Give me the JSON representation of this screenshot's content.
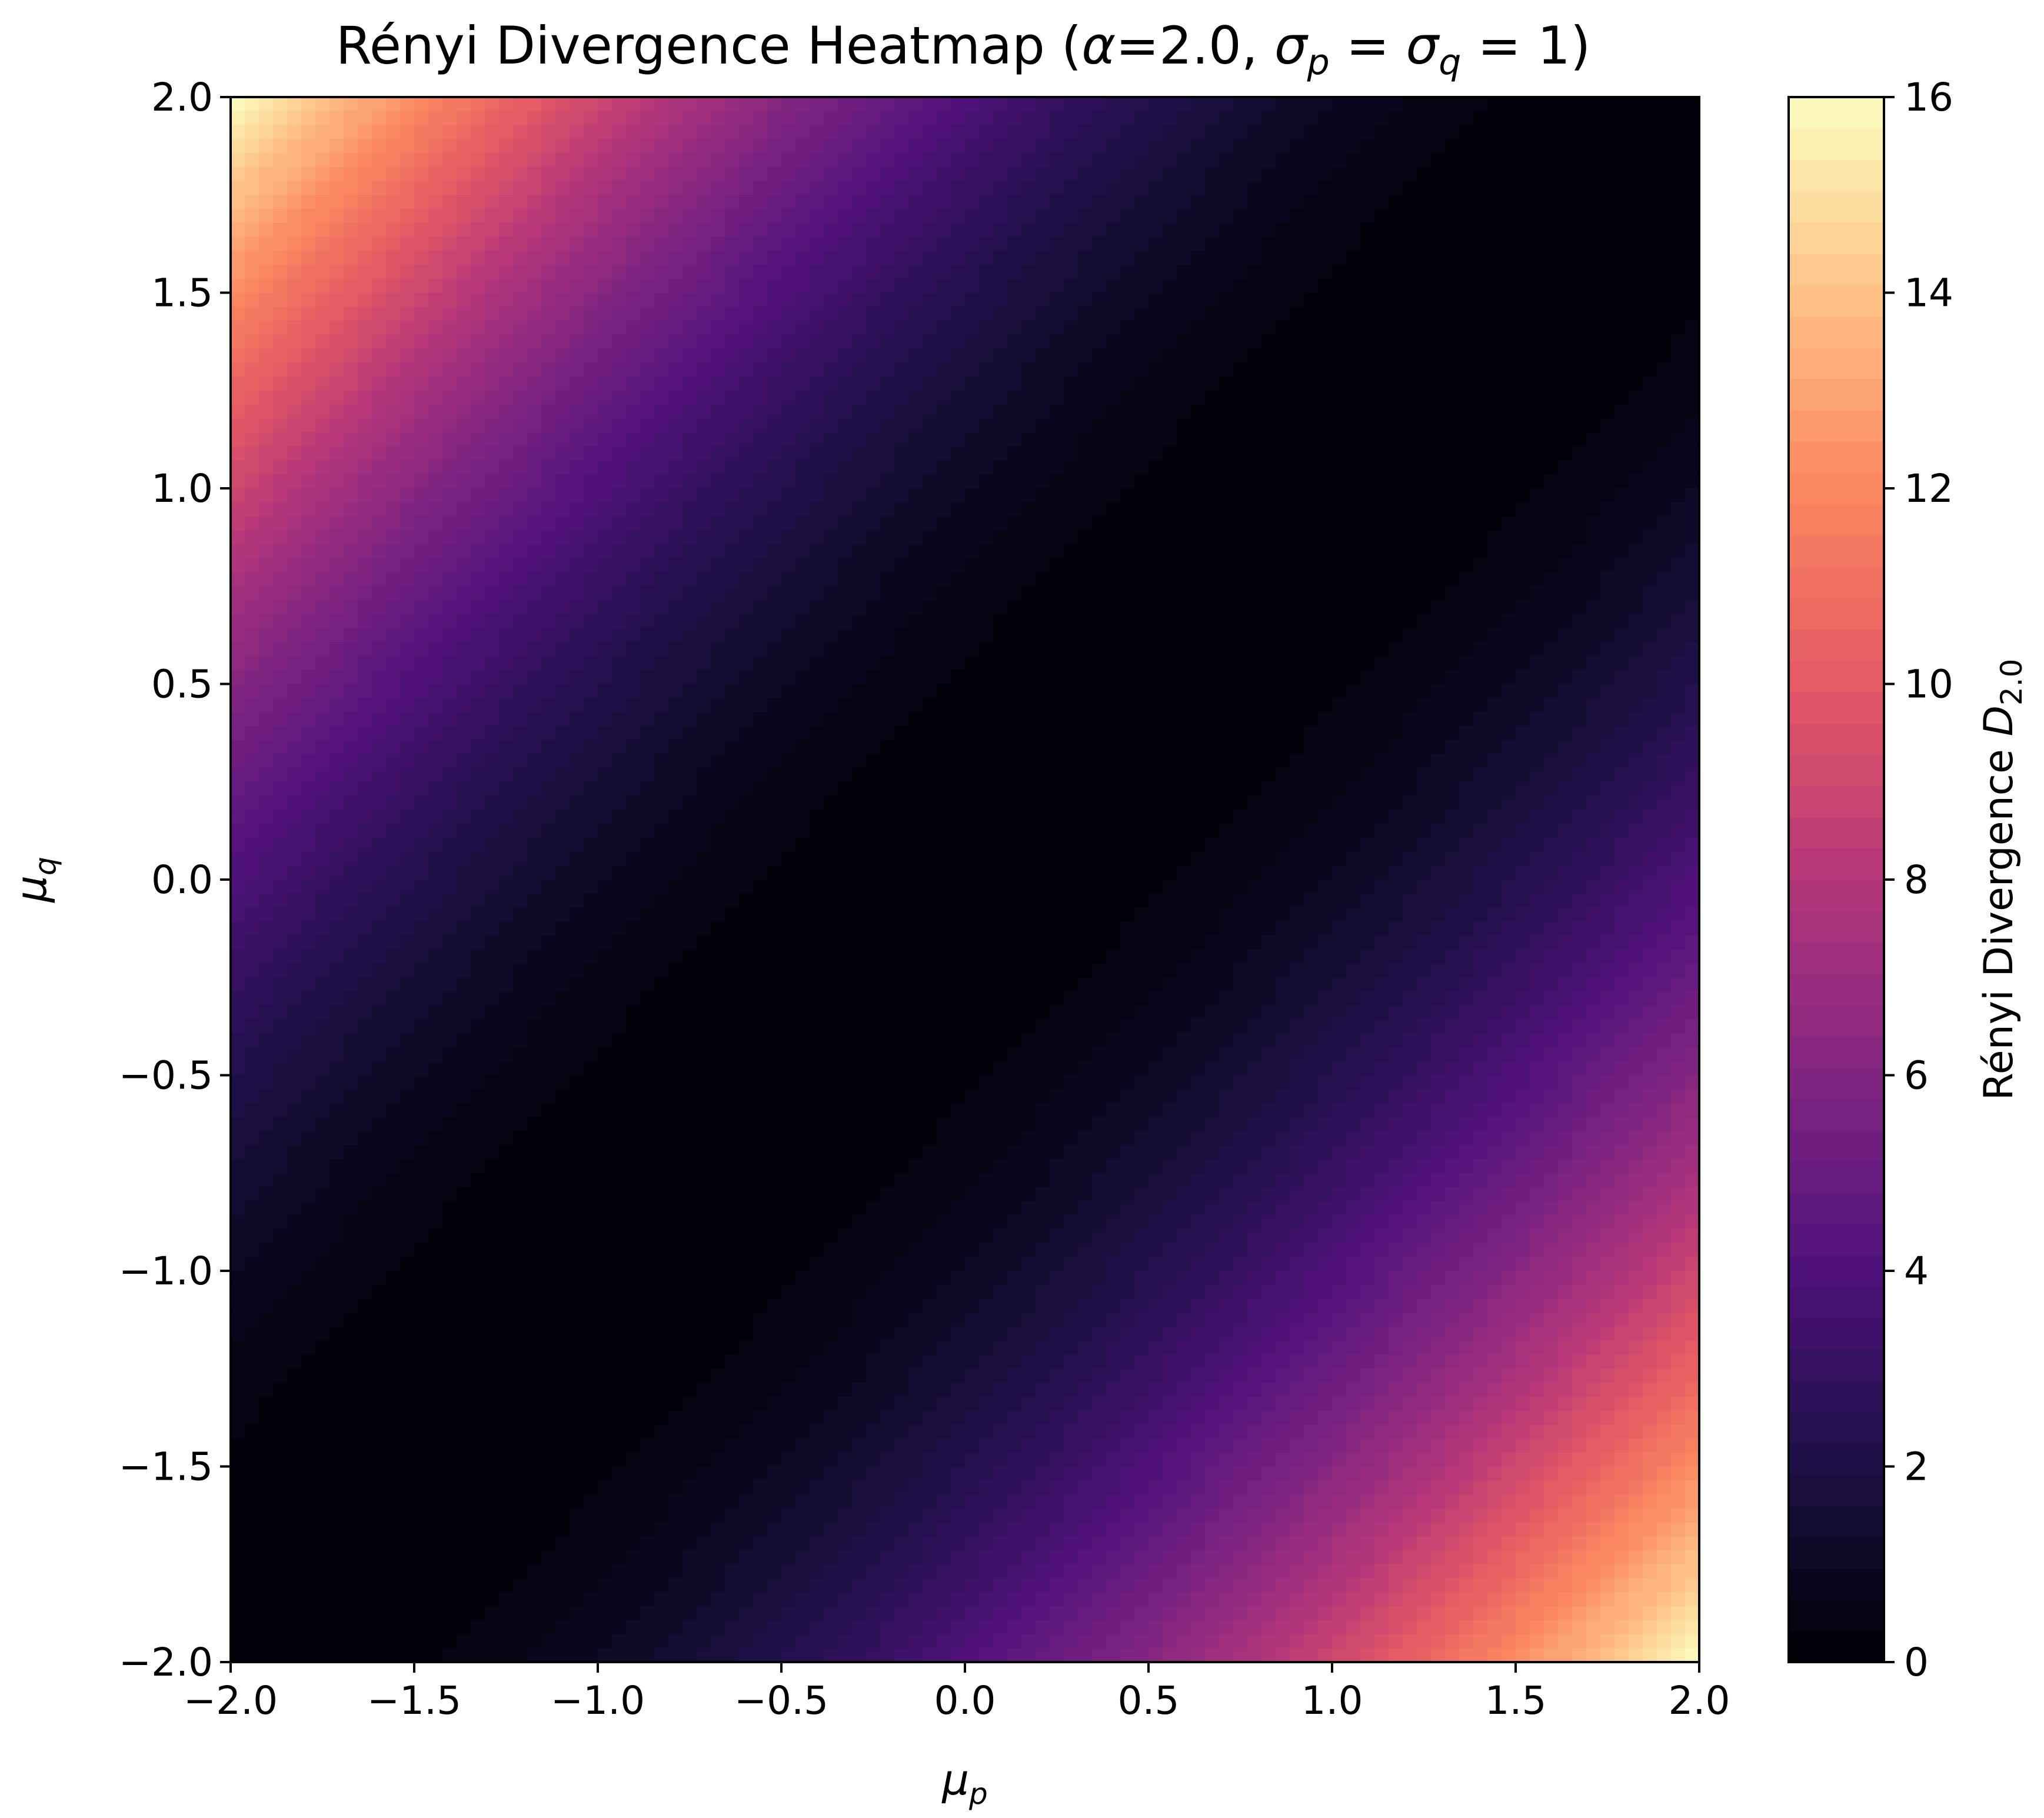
{
  "chart_data": {
    "type": "heatmap",
    "title": {
      "prefix": "Rényi Divergence Heatmap (",
      "alpha_symbol": "α",
      "alpha_value": "=2.0, ",
      "sigma": "σ",
      "sub_p": "p",
      "equals": " = ",
      "sub_q": "q",
      "suffix": " = 1)"
    },
    "xlabel": {
      "symbol": "μ",
      "sub": "p"
    },
    "ylabel": {
      "symbol": "μ",
      "sub": "q"
    },
    "xlim": [
      -2.0,
      2.0
    ],
    "ylim": [
      -2.0,
      2.0
    ],
    "x_ticks": [
      "−2.0",
      "−1.5",
      "−1.0",
      "−0.5",
      "0.0",
      "0.5",
      "1.0",
      "1.5",
      "2.0"
    ],
    "y_ticks": [
      "−2.0",
      "−1.5",
      "−1.0",
      "−0.5",
      "0.0",
      "0.5",
      "1.0",
      "1.5",
      "2.0"
    ],
    "x_tick_values": [
      -2.0,
      -1.5,
      -1.0,
      -0.5,
      0.0,
      0.5,
      1.0,
      1.5,
      2.0
    ],
    "y_tick_values": [
      -2.0,
      -1.5,
      -1.0,
      -0.5,
      0.0,
      0.5,
      1.0,
      1.5,
      2.0
    ],
    "value_formula": "(mu_p - mu_q)^2",
    "colormap": "magma",
    "colormap_stops": [
      "#000004",
      "#1c1044",
      "#4f127b",
      "#812581",
      "#b5367a",
      "#e55964",
      "#fb8761",
      "#fec287",
      "#fcfdbf"
    ],
    "contour_levels": 50,
    "colorbar": {
      "range": [
        0,
        16
      ],
      "ticks": [
        "0",
        "2",
        "4",
        "6",
        "8",
        "10",
        "12",
        "14",
        "16"
      ],
      "tick_values": [
        0,
        2,
        4,
        6,
        8,
        10,
        12,
        14,
        16
      ],
      "label": {
        "text": "Rényi Divergence ",
        "symbol": "D",
        "sub": "2.0"
      }
    },
    "grid": false
  }
}
